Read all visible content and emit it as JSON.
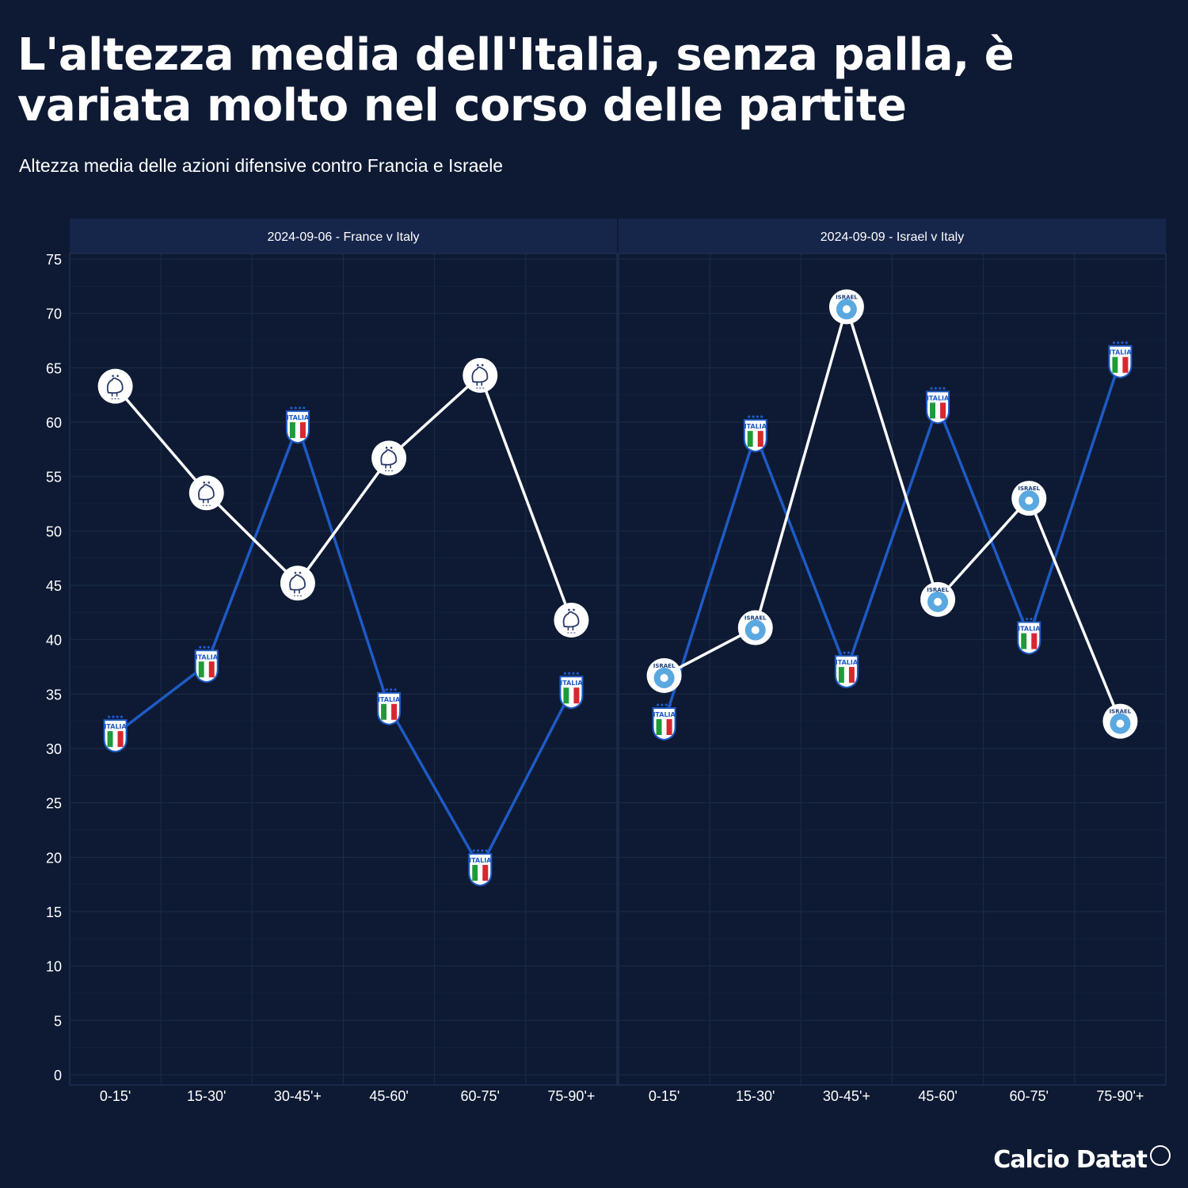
{
  "title": "L'altezza media dell'Italia, senza palla, è variata molto nel corso delle partite",
  "subtitle": "Altezza media delle azioni difensive contro Francia e Israele",
  "brand": "Calcio Datat",
  "colors": {
    "background": "#0e1a33",
    "panel_header": "#16254a",
    "italy_line": "#1e5bc6",
    "opponent_line": "#ffffff",
    "grid": "#1a2e44"
  },
  "chart_data": [
    {
      "type": "line",
      "panel_title": "2024-09-06 - France v Italy",
      "categories": [
        "0-15'",
        "15-30'",
        "30-45'+",
        "45-60'",
        "60-75'",
        "75-90'+"
      ],
      "ylim": [
        0,
        75
      ],
      "yticks": [
        0,
        5,
        10,
        15,
        20,
        25,
        30,
        35,
        40,
        45,
        50,
        55,
        60,
        65,
        70,
        75
      ],
      "grid": true,
      "series": [
        {
          "marker": "france-crest-icon",
          "marker_text": "",
          "values": [
            63.3,
            53.5,
            45.2,
            56.7,
            64.3,
            41.8
          ]
        },
        {
          "marker": "italy-crest-icon",
          "marker_text": "ITALIA",
          "values": [
            31.3,
            37.7,
            59.7,
            33.8,
            19.0,
            35.3
          ]
        }
      ]
    },
    {
      "type": "line",
      "panel_title": "2024-09-09 - Israel v Italy",
      "categories": [
        "0-15'",
        "15-30'",
        "30-45'+",
        "45-60'",
        "60-75'",
        "75-90'+"
      ],
      "ylim": [
        0,
        75
      ],
      "yticks": [
        0,
        5,
        10,
        15,
        20,
        25,
        30,
        35,
        40,
        45,
        50,
        55,
        60,
        65,
        70,
        75
      ],
      "grid": true,
      "series": [
        {
          "marker": "israel-crest-icon",
          "marker_text": "ISRAEL",
          "values": [
            36.7,
            41.1,
            70.6,
            43.7,
            53.0,
            32.5
          ]
        },
        {
          "marker": "italy-crest-icon",
          "marker_text": "ITALIA",
          "values": [
            32.4,
            58.9,
            37.2,
            61.5,
            40.3,
            65.7
          ]
        }
      ]
    }
  ]
}
